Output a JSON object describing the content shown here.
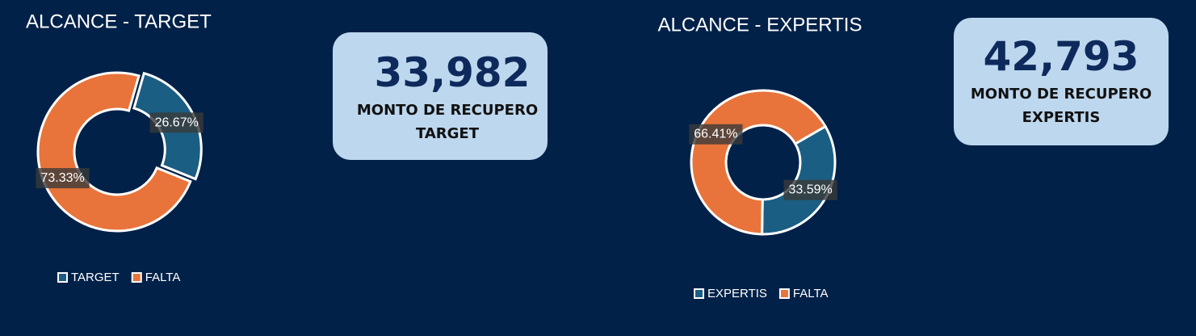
{
  "chart_data": [
    {
      "type": "donut",
      "title": "ALCANCE - TARGET",
      "categories": [
        "TARGET",
        "FALTA"
      ],
      "values": [
        26.67,
        73.33
      ],
      "value_labels": [
        "26.67%",
        "73.33%"
      ],
      "colors": [
        "#1b5e83",
        "#e8743b"
      ]
    },
    {
      "type": "donut",
      "title": "ALCANCE - EXPERTIS",
      "categories": [
        "EXPERTIS",
        "FALTA"
      ],
      "values": [
        33.59,
        66.41
      ],
      "value_labels": [
        "33.59%",
        "66.41%"
      ],
      "colors": [
        "#1b5e83",
        "#e8743b"
      ]
    }
  ],
  "cards": [
    {
      "value": "33,982",
      "label": "MONTO DE RECUPERO TARGET"
    },
    {
      "value": "42,793",
      "label": "MONTO DE RECUPERO EXPERTIS"
    }
  ]
}
